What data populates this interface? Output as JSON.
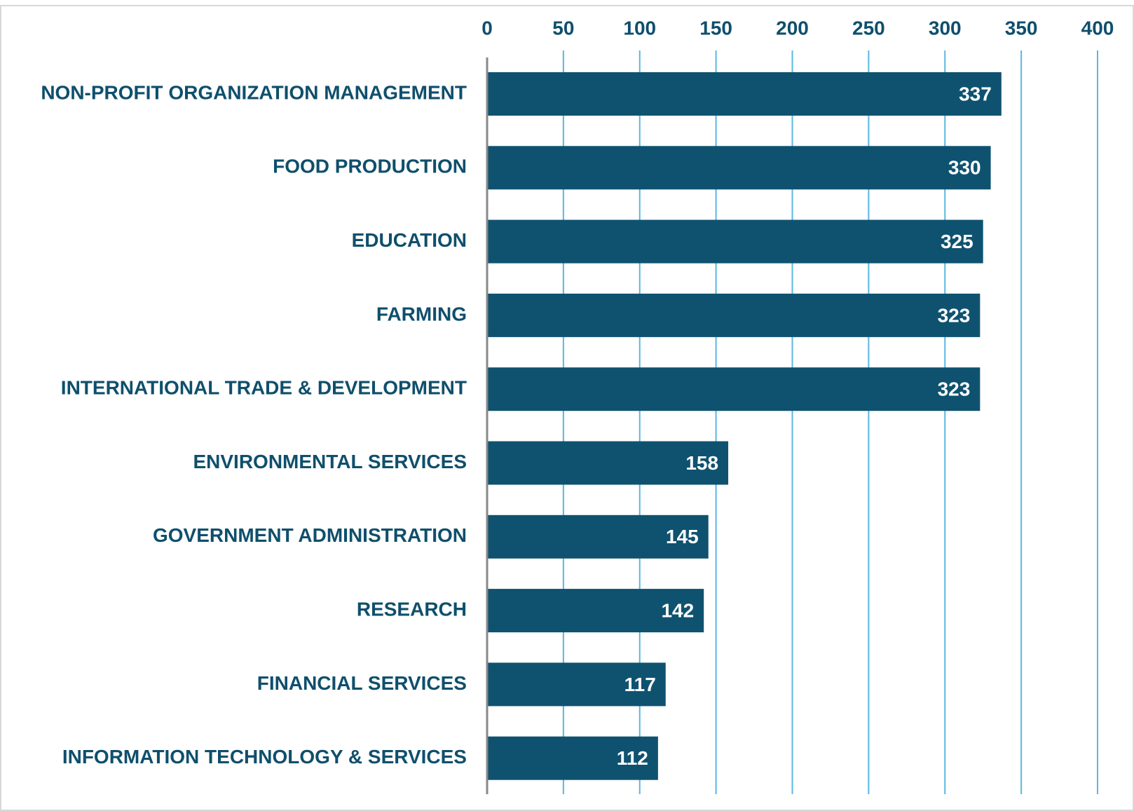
{
  "chart_data": {
    "type": "hbar",
    "categories": [
      "NON-PROFIT ORGANIZATION MANAGEMENT",
      "FOOD PRODUCTION",
      "EDUCATION",
      "FARMING",
      "INTERNATIONAL TRADE & DEVELOPMENT",
      "ENVIRONMENTAL SERVICES",
      "GOVERNMENT ADMINISTRATION",
      "RESEARCH",
      "FINANCIAL SERVICES",
      "INFORMATION TECHNOLOGY & SERVICES"
    ],
    "values": [
      337,
      330,
      325,
      323,
      323,
      158,
      145,
      142,
      117,
      112
    ],
    "color": "#0f5270",
    "xlim": [
      0,
      400
    ],
    "xticks": [
      0,
      50,
      100,
      150,
      200,
      250,
      300,
      350,
      400
    ],
    "grid": true,
    "grid_color": "#5bb6e0"
  }
}
